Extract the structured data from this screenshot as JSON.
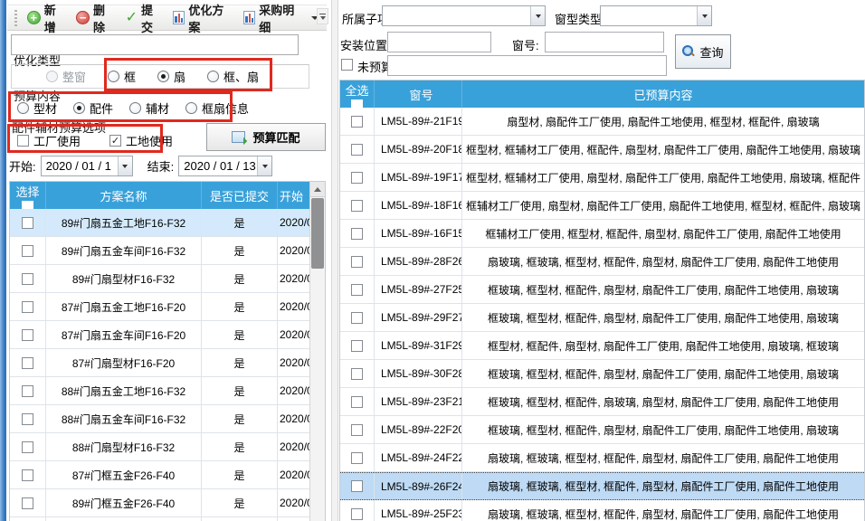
{
  "colors": {
    "header_blue": "#39a1da",
    "annotation_red": "#e0291e",
    "selected_row_left": "#d4eafc",
    "selected_row_right": "#bedaf4"
  },
  "toolbar": {
    "buttons": [
      {
        "name": "add",
        "label": "新增",
        "icon": "add-icon"
      },
      {
        "name": "delete",
        "label": "删除",
        "icon": "remove-icon"
      },
      {
        "name": "submit",
        "label": "提交",
        "icon": "check-icon"
      },
      {
        "name": "optimize-plan",
        "label": "优化方案",
        "icon": "report-icon"
      },
      {
        "name": "purchase-detail",
        "label": "采购明细",
        "icon": "report-icon",
        "dropdown": true
      }
    ]
  },
  "filters_left": {
    "search_value": "",
    "opt_type": {
      "label": "优化类型",
      "options": [
        {
          "label": "整窗",
          "checked": false,
          "disabled": true
        },
        {
          "label": "框",
          "checked": false
        },
        {
          "label": "扇",
          "checked": true
        },
        {
          "label": "框、扇",
          "checked": false
        }
      ]
    },
    "budget_content": {
      "label": "预算内容",
      "options": [
        {
          "label": "型材",
          "checked": false
        },
        {
          "label": "配件",
          "checked": true
        },
        {
          "label": "辅材",
          "checked": false
        },
        {
          "label": "框扇信息",
          "checked": false
        }
      ]
    },
    "acc_options": {
      "label": "配件辅材预算选项",
      "checkboxes": [
        {
          "label": "工厂使用",
          "checked": false
        },
        {
          "label": "工地使用",
          "checked": true
        }
      ]
    },
    "match_button": "预算匹配",
    "date_start_label": "开始:",
    "date_start_value": "2020 / 01 / 1",
    "date_end_label": "结束:",
    "date_end_value": "2020 / 01 / 13"
  },
  "plans_table": {
    "headers": [
      "选择",
      "方案名称",
      "是否已提交",
      "开始"
    ],
    "rows": [
      {
        "name": "89#门扇五金工地F16-F32",
        "submitted": "是",
        "start": "2020/0",
        "selected": true
      },
      {
        "name": "89#门扇五金车间F16-F32",
        "submitted": "是",
        "start": "2020/0",
        "selected": false
      },
      {
        "name": "89#门扇型材F16-F32",
        "submitted": "是",
        "start": "2020/0",
        "selected": false
      },
      {
        "name": "87#门扇五金工地F16-F20",
        "submitted": "是",
        "start": "2020/0",
        "selected": false
      },
      {
        "name": "87#门扇五金车间F16-F20",
        "submitted": "是",
        "start": "2020/0",
        "selected": false
      },
      {
        "name": "87#门扇型材F16-F20",
        "submitted": "是",
        "start": "2020/0",
        "selected": false
      },
      {
        "name": "88#门扇五金工地F16-F32",
        "submitted": "是",
        "start": "2020/0",
        "selected": false
      },
      {
        "name": "88#门扇五金车间F16-F32",
        "submitted": "是",
        "start": "2020/0",
        "selected": false
      },
      {
        "name": "88#门扇型材F16-F32",
        "submitted": "是",
        "start": "2020/0",
        "selected": false
      },
      {
        "name": "87#门框五金F26-F40",
        "submitted": "是",
        "start": "2020/0",
        "selected": false
      },
      {
        "name": "89#门框五金F26-F40",
        "submitted": "是",
        "start": "2020/0",
        "selected": false
      },
      {
        "name": "88#门框五金F21-F40",
        "submitted": "是",
        "start": "2020/0",
        "selected": false
      }
    ]
  },
  "filters_right": {
    "sub_item_label": "所属子项:",
    "sub_item_value": "",
    "window_type_label": "窗型类型:",
    "window_type_value": "",
    "install_pos_label": "安装位置:",
    "install_pos_value": "",
    "window_no_label": "窗号:",
    "window_no_value": "",
    "no_budget_label": "未预算:",
    "no_budget_checked": false,
    "no_budget_value": "",
    "query_button": "查询"
  },
  "windows_table": {
    "headers": [
      "全选",
      "窗号",
      "已预算内容"
    ],
    "rows": [
      {
        "no": "LM5L-89#-21F19",
        "content": "扇型材, 扇配件工厂使用, 扇配件工地使用, 框型材, 框配件, 扇玻璃",
        "selected": false
      },
      {
        "no": "LM5L-89#-20F18",
        "content": "框型材, 框辅材工厂使用, 框配件, 扇型材, 扇配件工厂使用, 扇配件工地使用, 扇玻璃",
        "selected": false
      },
      {
        "no": "LM5L-89#-19F17",
        "content": "框型材, 框辅材工厂使用, 扇型材, 扇配件工厂使用, 扇配件工地使用, 扇玻璃, 框配件",
        "selected": false
      },
      {
        "no": "LM5L-89#-18F16",
        "content": "框辅材工厂使用, 扇型材, 扇配件工厂使用, 扇配件工地使用, 框型材, 框配件, 扇玻璃",
        "selected": false
      },
      {
        "no": "LM5L-89#-16F15",
        "content": "框辅材工厂使用, 框型材, 框配件, 扇型材, 扇配件工厂使用, 扇配件工地使用",
        "selected": false
      },
      {
        "no": "LM5L-89#-28F26",
        "content": "扇玻璃, 框玻璃, 框型材, 框配件, 扇型材, 扇配件工厂使用, 扇配件工地使用",
        "selected": false
      },
      {
        "no": "LM5L-89#-27F25",
        "content": "框玻璃, 框型材, 框配件, 扇型材, 扇配件工厂使用, 扇配件工地使用, 扇玻璃",
        "selected": false
      },
      {
        "no": "LM5L-89#-29F27",
        "content": "框玻璃, 框型材, 框配件, 扇型材, 扇配件工厂使用, 扇配件工地使用, 扇玻璃",
        "selected": false
      },
      {
        "no": "LM5L-89#-31F29",
        "content": "框型材, 框配件, 扇型材, 扇配件工厂使用, 扇配件工地使用, 扇玻璃, 框玻璃",
        "selected": false
      },
      {
        "no": "LM5L-89#-30F28",
        "content": "框玻璃, 框型材, 框配件, 扇型材, 扇配件工厂使用, 扇配件工地使用, 扇玻璃",
        "selected": false
      },
      {
        "no": "LM5L-89#-23F21",
        "content": "框玻璃, 框型材, 框配件, 扇玻璃, 扇型材, 扇配件工厂使用, 扇配件工地使用",
        "selected": false
      },
      {
        "no": "LM5L-89#-22F20",
        "content": "框玻璃, 框型材, 框配件, 扇型材, 扇配件工厂使用, 扇配件工地使用, 扇玻璃",
        "selected": false
      },
      {
        "no": "LM5L-89#-24F22",
        "content": "扇玻璃, 框玻璃, 框型材, 框配件, 扇型材, 扇配件工厂使用, 扇配件工地使用",
        "selected": false
      },
      {
        "no": "LM5L-89#-26F24",
        "content": "扇玻璃, 框玻璃, 框型材, 框配件, 扇型材, 扇配件工厂使用, 扇配件工地使用",
        "selected": true
      },
      {
        "no": "LM5L-89#-25F23",
        "content": "扇玻璃, 框玻璃, 框型材, 框配件, 扇型材, 扇配件工厂使用, 扇配件工地使用",
        "selected": false
      }
    ]
  }
}
